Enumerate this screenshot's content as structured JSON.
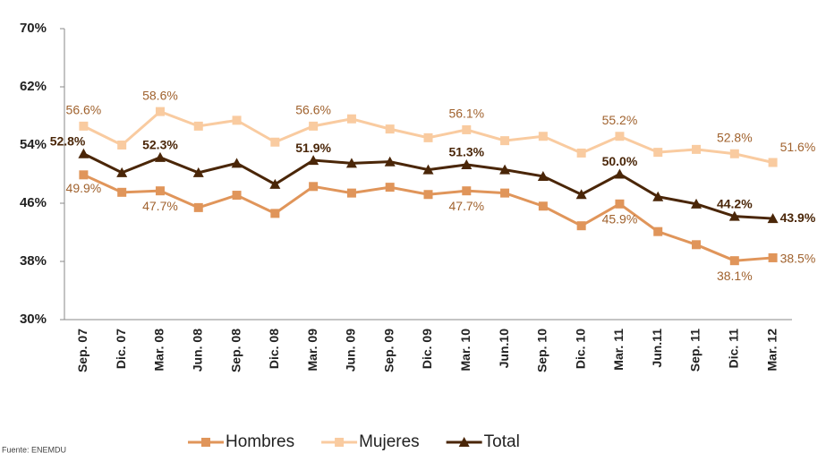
{
  "chart_data": {
    "type": "line",
    "categories": [
      "Sep. 07",
      "Dic. 07",
      "Mar. 08",
      "Jun. 08",
      "Sep. 08",
      "Dic. 08",
      "Mar. 09",
      "Jun. 09",
      "Sep. 09",
      "Dic. 09",
      "Mar. 10",
      "Jun.10",
      "Sep. 10",
      "Dic. 10",
      "Mar. 11",
      "Jun.11",
      "Sep. 11",
      "Dic. 11",
      "Mar. 12"
    ],
    "series": [
      {
        "name": "Hombres",
        "color": "#e0955a",
        "label_color": "#a0622e",
        "marker": "square",
        "values": [
          49.9,
          47.5,
          47.7,
          45.4,
          47.1,
          44.6,
          48.3,
          47.4,
          48.2,
          47.2,
          47.7,
          47.4,
          45.6,
          42.9,
          45.9,
          42.1,
          40.3,
          38.1,
          38.5
        ],
        "value_labels": [
          "49.9%",
          null,
          "47.7%",
          null,
          null,
          null,
          null,
          null,
          null,
          null,
          "47.7%",
          null,
          null,
          null,
          "45.9%",
          null,
          null,
          "38.1%",
          "38.5%"
        ]
      },
      {
        "name": "Mujeres",
        "color": "#f9cba0",
        "label_color": "#a0622e",
        "marker": "square",
        "values": [
          56.6,
          54.0,
          58.6,
          56.6,
          57.4,
          54.4,
          56.6,
          57.6,
          56.2,
          55.0,
          56.1,
          54.6,
          55.2,
          52.9,
          55.2,
          53.0,
          53.4,
          52.8,
          51.6
        ],
        "value_labels": [
          "56.6%",
          null,
          "58.6%",
          null,
          null,
          null,
          "56.6%",
          null,
          null,
          null,
          "56.1%",
          null,
          null,
          null,
          "55.2%",
          null,
          null,
          "52.8%",
          "51.6%"
        ]
      },
      {
        "name": "Total",
        "color": "#4a2608",
        "label_color": "#4a2608",
        "marker": "triangle",
        "values": [
          52.8,
          50.2,
          52.3,
          50.2,
          51.5,
          48.6,
          51.9,
          51.5,
          51.7,
          50.6,
          51.3,
          50.6,
          49.7,
          47.2,
          50.0,
          46.9,
          45.9,
          44.2,
          43.9
        ],
        "value_labels": [
          "52.8%",
          null,
          "52.3%",
          null,
          null,
          null,
          "51.9%",
          null,
          null,
          null,
          "51.3%",
          null,
          null,
          null,
          "50.0%",
          null,
          null,
          "44.2%",
          "43.9%"
        ]
      }
    ],
    "ylim": [
      30,
      70
    ],
    "yticks": [
      {
        "value": 30,
        "label": "30%"
      },
      {
        "value": 38,
        "label": "38%"
      },
      {
        "value": 46,
        "label": "46%"
      },
      {
        "value": 54,
        "label": "54%"
      },
      {
        "value": 62,
        "label": "62%"
      },
      {
        "value": 70,
        "label": "70%"
      }
    ],
    "source": "Fuente: ENEMDU"
  }
}
